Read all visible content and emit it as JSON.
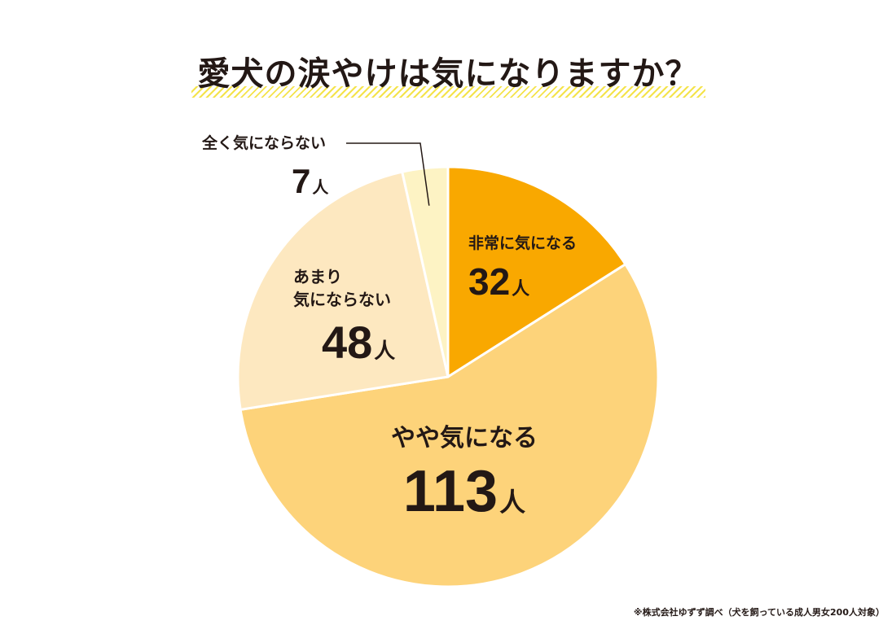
{
  "chart_data": {
    "type": "pie",
    "title": "愛犬の涙やけは気になりますか？",
    "unit": "人",
    "start_angle_deg": 0,
    "direction": "clockwise",
    "slices": [
      {
        "label": "非常に気になる",
        "value": 32,
        "color": "#f9a800",
        "label_lines": [
          "非常に気になる"
        ]
      },
      {
        "label": "やや気になる",
        "value": 113,
        "color": "#fdd37a",
        "label_lines": [
          "やや気になる"
        ]
      },
      {
        "label": "あまり気にならない",
        "value": 48,
        "color": "#fde8c0",
        "label_lines": [
          "あまり",
          "気にならない"
        ]
      },
      {
        "label": "全く気にならない",
        "value": 7,
        "color": "#fdf3c4",
        "label_lines": [
          "全く気にならない"
        ]
      }
    ],
    "footnote": "※株式会社ゆずず調べ（犬を飼っている成人男女200人対象）"
  }
}
